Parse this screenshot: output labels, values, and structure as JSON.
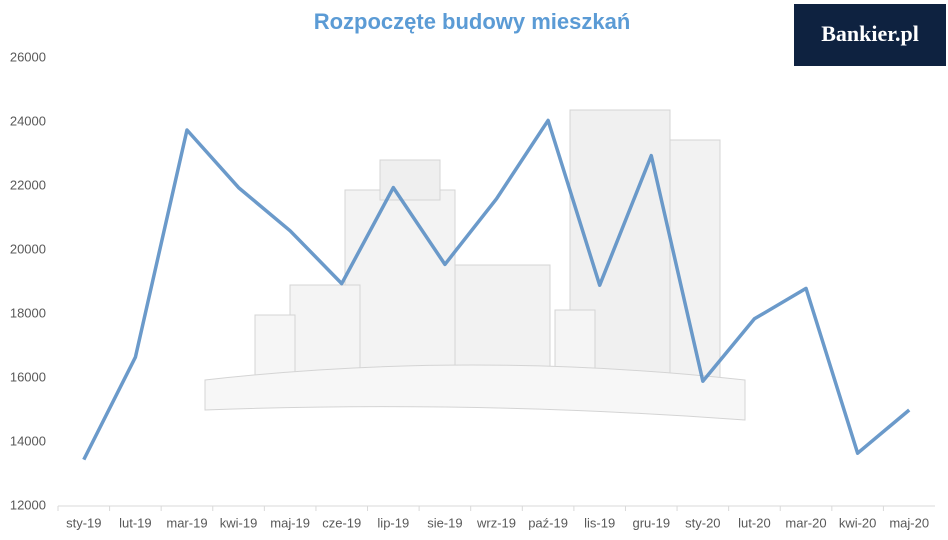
{
  "logo": "Bankier.pl",
  "chart_data": {
    "type": "line",
    "title": "Rozpoczęte budowy mieszkań",
    "categories": [
      "sty-19",
      "lut-19",
      "mar-19",
      "kwi-19",
      "maj-19",
      "cze-19",
      "lip-19",
      "sie-19",
      "wrz-19",
      "paź-19",
      "lis-19",
      "gru-19",
      "sty-20",
      "lut-20",
      "mar-20",
      "kwi-20",
      "maj-20"
    ],
    "values": [
      13450,
      16650,
      23750,
      21950,
      20600,
      18950,
      21950,
      19550,
      21600,
      24050,
      18900,
      22950,
      15900,
      17850,
      18800,
      13650,
      15000
    ],
    "color": "#5b8fc4",
    "ylim": [
      12000,
      26000
    ],
    "yticks": [
      12000,
      14000,
      16000,
      18000,
      20000,
      22000,
      24000,
      26000
    ],
    "grid": false
  }
}
